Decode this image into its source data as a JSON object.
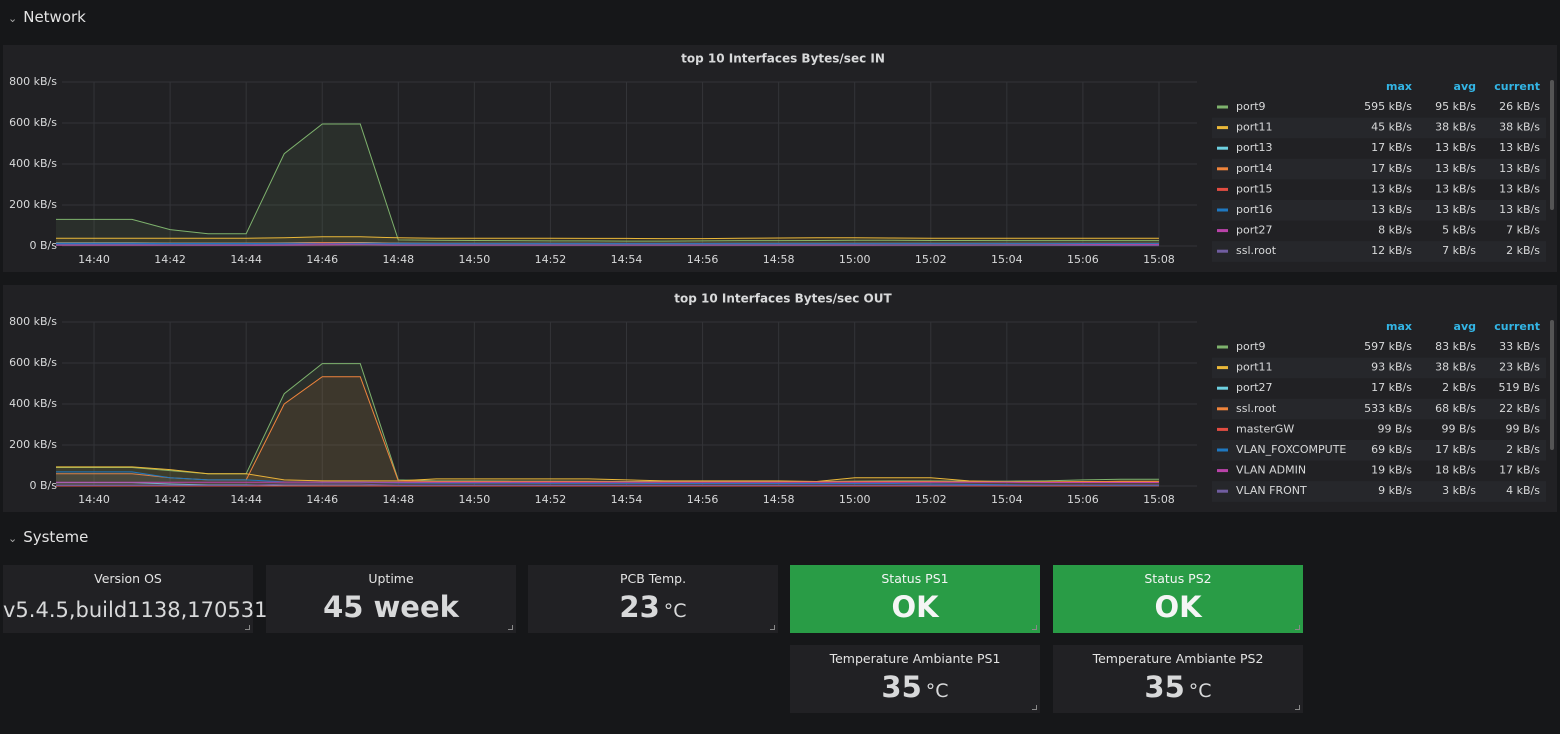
{
  "rows": [
    {
      "title": "Network"
    },
    {
      "title": "Systeme"
    }
  ],
  "chart_data": [
    {
      "type": "line",
      "title": "top 10 Interfaces Bytes/sec IN",
      "x": [
        "14:39",
        "14:40",
        "14:41",
        "14:42",
        "14:43",
        "14:44",
        "14:45",
        "14:46",
        "14:47",
        "14:48",
        "14:49",
        "14:50",
        "14:51",
        "14:52",
        "14:53",
        "14:54",
        "14:55",
        "14:56",
        "14:57",
        "14:58",
        "14:59",
        "15:00",
        "15:01",
        "15:02",
        "15:03",
        "15:04",
        "15:05",
        "15:06",
        "15:07",
        "15:08"
      ],
      "xlim": [
        "14:39",
        "15:09"
      ],
      "xticks": [
        "14:40",
        "14:42",
        "14:44",
        "14:46",
        "14:48",
        "14:50",
        "14:52",
        "14:54",
        "14:56",
        "14:58",
        "15:00",
        "15:02",
        "15:04",
        "15:06",
        "15:08"
      ],
      "ylim": [
        0,
        800
      ],
      "yticks": [
        {
          "value": 0,
          "label": "0 B/s"
        },
        {
          "value": 200,
          "label": "200 kB/s"
        },
        {
          "value": 400,
          "label": "400 kB/s"
        },
        {
          "value": 600,
          "label": "600 kB/s"
        },
        {
          "value": 800,
          "label": "800 kB/s"
        }
      ],
      "grid": true,
      "legend_columns": [
        "max",
        "avg",
        "current"
      ],
      "series": [
        {
          "name": "port9",
          "color": "#7eb26d",
          "stats": [
            "595 kB/s",
            "95 kB/s",
            "26 kB/s"
          ],
          "values": [
            130,
            130,
            130,
            80,
            60,
            60,
            450,
            595,
            595,
            30,
            28,
            27,
            26,
            25,
            25,
            24,
            24,
            25,
            26,
            26,
            27,
            28,
            28,
            27,
            27,
            26,
            26,
            26,
            26,
            26
          ]
        },
        {
          "name": "port11",
          "color": "#eab839",
          "stats": [
            "45 kB/s",
            "38 kB/s",
            "38 kB/s"
          ],
          "values": [
            38,
            38,
            38,
            38,
            38,
            38,
            40,
            45,
            45,
            40,
            38,
            38,
            38,
            38,
            37,
            37,
            36,
            36,
            38,
            39,
            40,
            40,
            39,
            38,
            38,
            38,
            38,
            38,
            38,
            38
          ]
        },
        {
          "name": "port13",
          "color": "#6ed0e0",
          "stats": [
            "17 kB/s",
            "13 kB/s",
            "13 kB/s"
          ],
          "values": [
            15,
            15,
            15,
            14,
            14,
            14,
            15,
            17,
            17,
            14,
            13,
            13,
            13,
            13,
            13,
            12,
            12,
            12,
            13,
            13,
            13,
            13,
            13,
            13,
            13,
            13,
            13,
            13,
            13,
            13
          ]
        },
        {
          "name": "port14",
          "color": "#ef843c",
          "stats": [
            "17 kB/s",
            "13 kB/s",
            "13 kB/s"
          ],
          "values": [
            13,
            13,
            13,
            13,
            13,
            13,
            14,
            17,
            16,
            13,
            13,
            13,
            13,
            13,
            13,
            13,
            13,
            13,
            13,
            13,
            13,
            13,
            13,
            13,
            13,
            13,
            13,
            13,
            13,
            13
          ]
        },
        {
          "name": "port15",
          "color": "#e24d42",
          "stats": [
            "13 kB/s",
            "13 kB/s",
            "13 kB/s"
          ],
          "values": [
            13,
            13,
            13,
            13,
            13,
            13,
            13,
            13,
            13,
            13,
            13,
            13,
            13,
            13,
            13,
            13,
            13,
            13,
            13,
            13,
            13,
            13,
            13,
            13,
            13,
            13,
            13,
            13,
            13,
            13
          ]
        },
        {
          "name": "port16",
          "color": "#1f78c1",
          "stats": [
            "13 kB/s",
            "13 kB/s",
            "13 kB/s"
          ],
          "values": [
            12,
            12,
            12,
            12,
            12,
            12,
            13,
            13,
            13,
            13,
            13,
            13,
            13,
            13,
            13,
            13,
            13,
            13,
            13,
            13,
            13,
            13,
            13,
            13,
            13,
            13,
            13,
            13,
            13,
            13
          ]
        },
        {
          "name": "port27",
          "color": "#ba43a9",
          "stats": [
            "8 kB/s",
            "5 kB/s",
            "7 kB/s"
          ],
          "values": [
            5,
            5,
            5,
            5,
            4,
            4,
            5,
            6,
            8,
            5,
            5,
            5,
            5,
            5,
            5,
            5,
            5,
            5,
            5,
            5,
            5,
            5,
            5,
            5,
            5,
            6,
            6,
            7,
            7,
            7
          ]
        },
        {
          "name": "ssl.root",
          "color": "#705da0",
          "stats": [
            "12 kB/s",
            "7 kB/s",
            "2 kB/s"
          ],
          "values": [
            8,
            8,
            8,
            7,
            7,
            7,
            8,
            12,
            10,
            7,
            7,
            7,
            7,
            7,
            7,
            7,
            7,
            7,
            7,
            7,
            7,
            7,
            6,
            6,
            6,
            5,
            4,
            3,
            2,
            2
          ]
        }
      ]
    },
    {
      "type": "line",
      "title": "top 10 Interfaces Bytes/sec OUT",
      "x": [
        "14:39",
        "14:40",
        "14:41",
        "14:42",
        "14:43",
        "14:44",
        "14:45",
        "14:46",
        "14:47",
        "14:48",
        "14:49",
        "14:50",
        "14:51",
        "14:52",
        "14:53",
        "14:54",
        "14:55",
        "14:56",
        "14:57",
        "14:58",
        "14:59",
        "15:00",
        "15:01",
        "15:02",
        "15:03",
        "15:04",
        "15:05",
        "15:06",
        "15:07",
        "15:08"
      ],
      "xlim": [
        "14:39",
        "15:09"
      ],
      "xticks": [
        "14:40",
        "14:42",
        "14:44",
        "14:46",
        "14:48",
        "14:50",
        "14:52",
        "14:54",
        "14:56",
        "14:58",
        "15:00",
        "15:02",
        "15:04",
        "15:06",
        "15:08"
      ],
      "ylim": [
        0,
        800
      ],
      "yticks": [
        {
          "value": 0,
          "label": "0 B/s"
        },
        {
          "value": 200,
          "label": "200 kB/s"
        },
        {
          "value": 400,
          "label": "400 kB/s"
        },
        {
          "value": 600,
          "label": "600 kB/s"
        },
        {
          "value": 800,
          "label": "800 kB/s"
        }
      ],
      "grid": true,
      "legend_columns": [
        "max",
        "avg",
        "current"
      ],
      "series": [
        {
          "name": "port9",
          "color": "#7eb26d",
          "stats": [
            "597 kB/s",
            "83 kB/s",
            "33 kB/s"
          ],
          "values": [
            90,
            90,
            90,
            75,
            60,
            60,
            450,
            597,
            597,
            30,
            25,
            25,
            24,
            24,
            23,
            22,
            22,
            22,
            22,
            22,
            22,
            24,
            25,
            25,
            24,
            24,
            25,
            30,
            33,
            33
          ]
        },
        {
          "name": "port11",
          "color": "#eab839",
          "stats": [
            "93 kB/s",
            "38 kB/s",
            "23 kB/s"
          ],
          "values": [
            93,
            93,
            93,
            80,
            60,
            60,
            30,
            25,
            25,
            25,
            35,
            35,
            35,
            35,
            35,
            30,
            25,
            25,
            25,
            25,
            22,
            40,
            40,
            40,
            25,
            20,
            20,
            20,
            23,
            23
          ]
        },
        {
          "name": "port27",
          "color": "#6ed0e0",
          "stats": [
            "17 kB/s",
            "2 kB/s",
            "519 B/s"
          ],
          "values": [
            17,
            17,
            17,
            10,
            5,
            5,
            2,
            1,
            1,
            1,
            1,
            1,
            1,
            1,
            1,
            1,
            1,
            1,
            1,
            1,
            1,
            1,
            1,
            1,
            1,
            1,
            1,
            1,
            1,
            1
          ]
        },
        {
          "name": "ssl.root",
          "color": "#ef843c",
          "stats": [
            "533 kB/s",
            "68 kB/s",
            "22 kB/s"
          ],
          "values": [
            60,
            60,
            60,
            40,
            30,
            30,
            400,
            533,
            533,
            25,
            22,
            22,
            22,
            22,
            22,
            20,
            20,
            20,
            20,
            20,
            20,
            22,
            22,
            22,
            20,
            20,
            20,
            22,
            22,
            22
          ]
        },
        {
          "name": "masterGW",
          "color": "#e24d42",
          "stats": [
            "99 B/s",
            "99 B/s",
            "99 B/s"
          ],
          "values": [
            0.1,
            0.1,
            0.1,
            0.1,
            0.1,
            0.1,
            0.1,
            0.1,
            0.1,
            0.1,
            0.1,
            0.1,
            0.1,
            0.1,
            0.1,
            0.1,
            0.1,
            0.1,
            0.1,
            0.1,
            0.1,
            0.1,
            0.1,
            0.1,
            0.1,
            0.1,
            0.1,
            0.1,
            0.1,
            0.1
          ]
        },
        {
          "name": "VLAN_FOXCOMPUTE",
          "color": "#1f78c1",
          "stats": [
            "69 kB/s",
            "17 kB/s",
            "2 kB/s"
          ],
          "values": [
            69,
            69,
            69,
            40,
            30,
            30,
            20,
            18,
            18,
            15,
            14,
            14,
            14,
            13,
            13,
            13,
            12,
            12,
            12,
            12,
            12,
            12,
            12,
            10,
            8,
            6,
            4,
            3,
            2,
            2
          ]
        },
        {
          "name": "VLAN ADMIN",
          "color": "#ba43a9",
          "stats": [
            "19 kB/s",
            "18 kB/s",
            "17 kB/s"
          ],
          "values": [
            18,
            18,
            18,
            18,
            18,
            18,
            19,
            19,
            19,
            18,
            18,
            18,
            18,
            18,
            18,
            18,
            18,
            18,
            18,
            18,
            18,
            18,
            18,
            18,
            18,
            18,
            17,
            17,
            17,
            17
          ]
        },
        {
          "name": "VLAN FRONT",
          "color": "#705da0",
          "stats": [
            "9 kB/s",
            "3 kB/s",
            "4 kB/s"
          ],
          "values": [
            3,
            3,
            3,
            3,
            3,
            3,
            9,
            9,
            9,
            3,
            3,
            3,
            3,
            3,
            3,
            3,
            3,
            3,
            3,
            3,
            3,
            3,
            3,
            3,
            3,
            3,
            3,
            4,
            4,
            4
          ]
        }
      ]
    }
  ],
  "panels": [
    {
      "title": "Version OS",
      "value": "v5.4.5,build1138,170531"
    },
    {
      "title": "Uptime",
      "value": "45 week"
    },
    {
      "title": "PCB Temp.",
      "value": 23,
      "unit": "°C"
    },
    {
      "title": "Status PS1",
      "value": "OK",
      "background": "#299c46"
    },
    {
      "title": "Status PS2",
      "value": "OK",
      "background": "#299c46"
    },
    {
      "title": "Temperature Ambiante PS1",
      "value": 35,
      "unit": "°C"
    },
    {
      "title": "Temperature Ambiante PS2",
      "value": 35,
      "unit": "°C"
    }
  ]
}
